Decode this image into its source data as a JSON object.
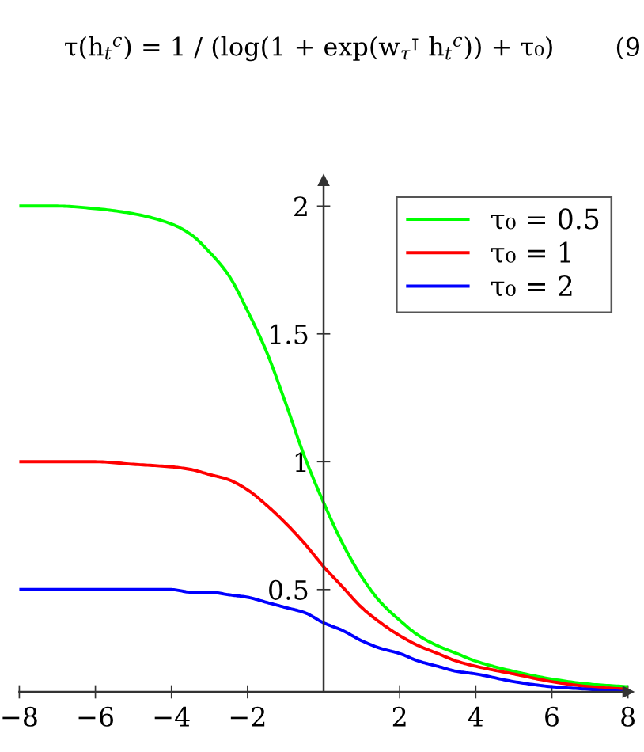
{
  "chart_data": {
    "type": "line",
    "title": "τ(h$_{t}$$^{c}$) = 1 / (log(1 + exp(w$_{τ}$$^{⊺}$ h$_{t}$$^{c}$)) + τ₀)",
    "annotations": [
      "(9"
    ],
    "x": [
      -8,
      -7,
      -6,
      -5,
      -4,
      -3.5,
      -3,
      -2.5,
      -2,
      -1.5,
      -1,
      -0.5,
      0,
      0.5,
      1,
      1.5,
      2,
      2.5,
      3,
      3.5,
      4,
      5,
      6,
      7,
      8
    ],
    "series": [
      {
        "name": "τ₀ = 0.5",
        "color": "#00ff00",
        "values": [
          2.0,
          2.0,
          1.99,
          1.97,
          1.93,
          1.89,
          1.82,
          1.73,
          1.59,
          1.43,
          1.23,
          1.02,
          0.84,
          0.68,
          0.55,
          0.45,
          0.38,
          0.32,
          0.28,
          0.25,
          0.22,
          0.18,
          0.15,
          0.13,
          0.12
        ]
      },
      {
        "name": "τ₀ = 1",
        "color": "#ff0000",
        "values": [
          1.0,
          1.0,
          1.0,
          0.99,
          0.98,
          0.97,
          0.95,
          0.93,
          0.89,
          0.83,
          0.76,
          0.68,
          0.59,
          0.51,
          0.43,
          0.37,
          0.32,
          0.28,
          0.25,
          0.22,
          0.2,
          0.17,
          0.14,
          0.12,
          0.11
        ]
      },
      {
        "name": "τ₀ = 2",
        "color": "#0000ff",
        "values": [
          0.5,
          0.5,
          0.5,
          0.5,
          0.5,
          0.49,
          0.49,
          0.48,
          0.47,
          0.45,
          0.43,
          0.41,
          0.37,
          0.34,
          0.3,
          0.27,
          0.25,
          0.22,
          0.2,
          0.18,
          0.17,
          0.14,
          0.12,
          0.11,
          0.1
        ]
      }
    ],
    "xlim": [
      -8,
      8
    ],
    "ylim": [
      0.1,
      2.1
    ],
    "xticks": [
      -8,
      -6,
      -4,
      -2,
      2,
      4,
      6,
      8
    ],
    "yticks": [
      0.5,
      1,
      1.5,
      2
    ],
    "grid": false,
    "legend": "top right",
    "marker": "none",
    "line_style": "solid"
  }
}
